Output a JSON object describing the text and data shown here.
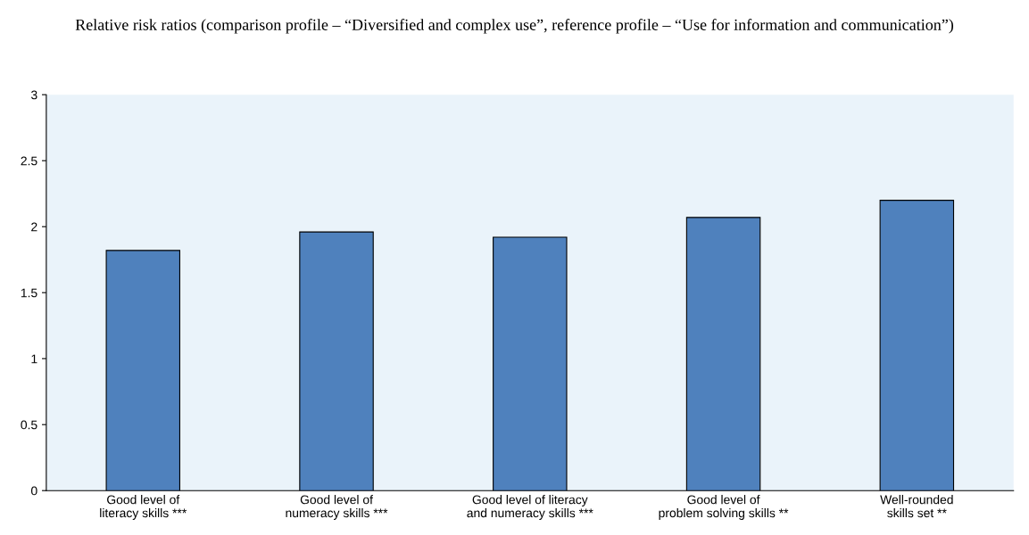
{
  "chart_data": {
    "type": "bar",
    "title": "Relative risk ratios (comparison profile – “Diversified and complex use”, reference profile – “Use for information and communication”)",
    "categories": [
      "Good level of\nliteracy skills ***",
      "Good level of\nnumeracy skills ***",
      "Good level of literacy\nand numeracy skills ***",
      "Good level of\nproblem solving skills **",
      "Well-rounded\nskills set **"
    ],
    "values": [
      1.82,
      1.96,
      1.92,
      2.07,
      2.2
    ],
    "color": "#4f81bd",
    "ylim": [
      0,
      3
    ],
    "yticks": [
      0,
      0.5,
      1,
      1.5,
      2,
      2.5,
      3
    ],
    "grid": false
  }
}
